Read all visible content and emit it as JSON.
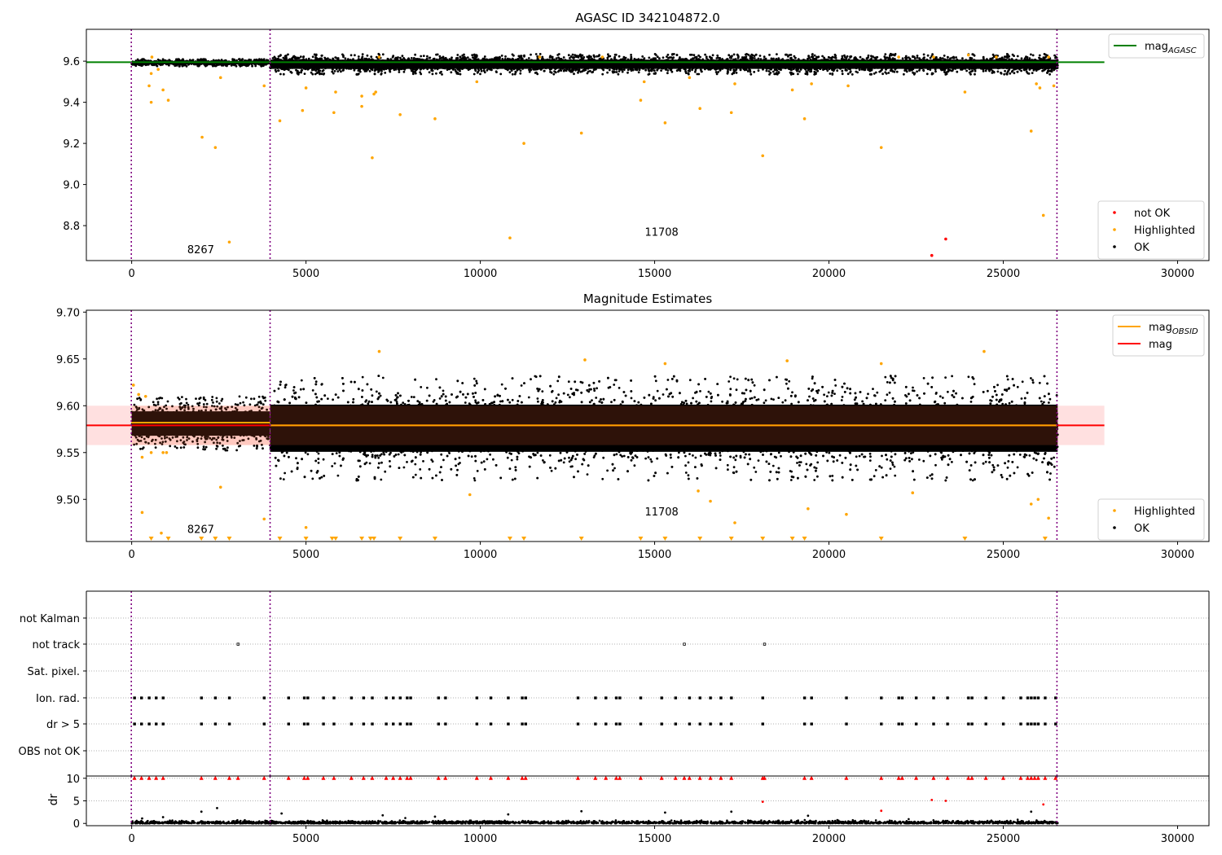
{
  "figure_title": "AGASC ID 342104872.0",
  "colors": {
    "ok": "#000000",
    "highlighted": "#ffa500",
    "not_ok": "#ff0000",
    "mag_agasc_line": "#008000",
    "mag_obsid_line": "#ffa500",
    "mag_line": "#ff0000",
    "mag_band": "#ffcccc",
    "obsid_marker": "#800080",
    "dr_flagged": "#ff0000"
  },
  "chart_data": [
    {
      "type": "scatter",
      "title": "AGASC ID 342104872.0",
      "xlim": [
        -1300,
        30900
      ],
      "ylim": [
        8.63,
        9.755
      ],
      "xticks": [
        0,
        5000,
        10000,
        15000,
        20000,
        25000,
        30000
      ],
      "yticks": [
        8.8,
        9.0,
        9.2,
        9.4,
        9.6
      ],
      "ytick_labels": [
        "8.8",
        "9.0",
        "9.2",
        "9.4",
        "9.6"
      ],
      "legend_top": {
        "position": "top-right",
        "entries": [
          {
            "label": "mag",
            "sub": "AGASC",
            "kind": "line",
            "color": "#008000"
          }
        ]
      },
      "legend_bottom": {
        "position": "bottom-right",
        "entries": [
          {
            "label": "not OK",
            "kind": "point",
            "color": "#ff0000"
          },
          {
            "label": "Highlighted",
            "kind": "point",
            "color": "#ffa500"
          },
          {
            "label": "OK",
            "kind": "point",
            "color": "#000000"
          }
        ]
      },
      "hline": {
        "name": "mag_AGASC",
        "y": 9.595,
        "x": [
          -1300,
          27900
        ]
      },
      "obsid_boundaries": [
        -10,
        3970,
        26540
      ],
      "obsid_labels": [
        {
          "text": "8267",
          "x": 1980,
          "y": 8.665
        },
        {
          "text": "11708",
          "x": 15200,
          "y": 8.75
        }
      ],
      "ok_band": [
        {
          "x": [
            0,
            3960
          ],
          "y_low": 9.575,
          "y_high": 9.61
        },
        {
          "x": [
            3970,
            26560
          ],
          "y_low": 9.535,
          "y_high": 9.635
        }
      ],
      "highlighted_points": [
        [
          500,
          9.48
        ],
        [
          560,
          9.54
        ],
        [
          580,
          9.62
        ],
        [
          760,
          9.56
        ],
        [
          560,
          9.4
        ],
        [
          900,
          9.46
        ],
        [
          1050,
          9.41
        ],
        [
          2020,
          9.23
        ],
        [
          2400,
          9.18
        ],
        [
          2550,
          9.52
        ],
        [
          2800,
          8.72
        ],
        [
          3800,
          9.48
        ],
        [
          4250,
          9.31
        ],
        [
          4900,
          9.36
        ],
        [
          5000,
          9.47
        ],
        [
          5800,
          9.35
        ],
        [
          5850,
          9.45
        ],
        [
          6600,
          9.43
        ],
        [
          6600,
          9.38
        ],
        [
          6900,
          9.13
        ],
        [
          6950,
          9.44
        ],
        [
          7000,
          9.45
        ],
        [
          7100,
          9.62
        ],
        [
          7700,
          9.34
        ],
        [
          8700,
          9.32
        ],
        [
          9900,
          9.5
        ],
        [
          10850,
          8.74
        ],
        [
          11250,
          9.2
        ],
        [
          11700,
          9.62
        ],
        [
          12900,
          9.25
        ],
        [
          13500,
          9.62
        ],
        [
          14600,
          9.41
        ],
        [
          14700,
          9.5
        ],
        [
          15300,
          9.3
        ],
        [
          16000,
          9.52
        ],
        [
          16300,
          9.37
        ],
        [
          17200,
          9.35
        ],
        [
          17300,
          9.49
        ],
        [
          18100,
          9.14
        ],
        [
          18950,
          9.46
        ],
        [
          19300,
          9.32
        ],
        [
          19500,
          9.49
        ],
        [
          20550,
          9.48
        ],
        [
          21500,
          9.18
        ],
        [
          22000,
          9.62
        ],
        [
          23000,
          9.62
        ],
        [
          23900,
          9.45
        ],
        [
          24000,
          9.63
        ],
        [
          24800,
          9.62
        ],
        [
          25800,
          9.26
        ],
        [
          25950,
          9.49
        ],
        [
          26050,
          9.47
        ],
        [
          26150,
          8.85
        ],
        [
          26450,
          9.48
        ],
        [
          26300,
          9.62
        ]
      ],
      "not_ok_points": [
        [
          22950,
          8.655
        ],
        [
          23350,
          8.735
        ]
      ]
    },
    {
      "type": "scatter",
      "title": "Magnitude Estimates",
      "xlim": [
        -1300,
        30900
      ],
      "ylim": [
        9.455,
        9.702
      ],
      "xticks": [
        0,
        5000,
        10000,
        15000,
        20000,
        25000,
        30000
      ],
      "yticks": [
        9.5,
        9.55,
        9.6,
        9.65,
        9.7
      ],
      "ytick_labels": [
        "9.50",
        "9.55",
        "9.60",
        "9.65",
        "9.70"
      ],
      "legend_top": {
        "position": "top-right",
        "entries": [
          {
            "label": "mag",
            "sub": "OBSID",
            "kind": "line",
            "color": "#ffa500"
          },
          {
            "label": "mag",
            "kind": "line",
            "color": "#ff0000"
          }
        ]
      },
      "legend_bottom": {
        "position": "bottom-right",
        "entries": [
          {
            "label": "Highlighted",
            "kind": "point",
            "color": "#ffa500"
          },
          {
            "label": "OK",
            "kind": "point",
            "color": "#000000"
          }
        ]
      },
      "band": {
        "x": [
          -1300,
          27900
        ],
        "y": [
          9.558,
          9.6
        ]
      },
      "mag_line": {
        "y": 9.579,
        "x": [
          -1300,
          27900
        ]
      },
      "mag_obsid": [
        {
          "x": [
            -10,
            3970
          ],
          "y": 9.582
        },
        {
          "x": [
            3970,
            26540
          ],
          "y": 9.579
        }
      ],
      "obsid_boundaries": [
        -10,
        3970,
        26540
      ],
      "obsid_labels": [
        {
          "text": "8267",
          "x": 1980,
          "y": 9.464
        },
        {
          "text": "11708",
          "x": 15200,
          "y": 9.483
        }
      ],
      "ok_band": [
        {
          "x": [
            0,
            3960
          ],
          "y_low": 9.552,
          "y_high": 9.61
        },
        {
          "x": [
            3970,
            26560
          ],
          "y_low": 9.52,
          "y_high": 9.632
        }
      ],
      "highlighted_points": [
        [
          50,
          9.622
        ],
        [
          200,
          9.612
        ],
        [
          400,
          9.61
        ],
        [
          300,
          9.545
        ],
        [
          560,
          9.55
        ],
        [
          900,
          9.55
        ],
        [
          1000,
          9.55
        ],
        [
          2550,
          9.513
        ],
        [
          300,
          9.486
        ],
        [
          850,
          9.464
        ],
        [
          3800,
          9.479
        ],
        [
          5000,
          9.47
        ],
        [
          7100,
          9.658
        ],
        [
          9700,
          9.505
        ],
        [
          13000,
          9.649
        ],
        [
          16250,
          9.509
        ],
        [
          16600,
          9.498
        ],
        [
          17300,
          9.475
        ],
        [
          19400,
          9.49
        ],
        [
          20500,
          9.484
        ],
        [
          22400,
          9.507
        ],
        [
          24450,
          9.658
        ],
        [
          25800,
          9.495
        ],
        [
          26000,
          9.5
        ],
        [
          26300,
          9.48
        ],
        [
          15300,
          9.645
        ],
        [
          18800,
          9.648
        ],
        [
          21500,
          9.645
        ]
      ],
      "clipped_points_x": [
        560,
        1050,
        2000,
        2400,
        2800,
        4250,
        5000,
        5750,
        5850,
        6600,
        6850,
        6950,
        7700,
        8700,
        10850,
        11250,
        12900,
        14600,
        15300,
        16300,
        17200,
        18100,
        18950,
        19300,
        21500,
        23900,
        26200
      ]
    },
    {
      "type": "scatter",
      "xlim": [
        -1300,
        30900
      ],
      "xticks": [
        0,
        5000,
        10000,
        15000,
        20000,
        25000,
        30000
      ],
      "flag_categories": [
        "not Kalman",
        "not track",
        "Sat. pixel.",
        "Ion. rad.",
        "dr > 5",
        "OBS not OK"
      ],
      "obsid_boundaries": [
        -10,
        3970,
        26540
      ],
      "flags": {
        "not Kalman": [],
        "not track": [
          3050,
          15850,
          18150
        ],
        "Sat. pixel.": [],
        "Ion. rad.": [
          80,
          280,
          500,
          700,
          900,
          2000,
          2400,
          2800,
          3800,
          4500,
          4950,
          5050,
          5500,
          5800,
          6300,
          6650,
          6900,
          7300,
          7500,
          7700,
          7900,
          8000,
          8800,
          9000,
          9900,
          10300,
          10800,
          11200,
          11300,
          12800,
          13300,
          13600,
          13900,
          14000,
          14600,
          15200,
          15600,
          16000,
          16300,
          16600,
          16900,
          17200,
          18100,
          19300,
          19500,
          20500,
          21500,
          22000,
          22100,
          22500,
          23000,
          23400,
          24000,
          24100,
          24500,
          25000,
          25500,
          25700,
          25800,
          25900,
          26000,
          26200,
          26500
        ],
        "dr > 5": [
          80,
          280,
          500,
          700,
          900,
          2000,
          2400,
          2800,
          3800,
          4500,
          4950,
          5050,
          5500,
          5800,
          6300,
          6650,
          6900,
          7300,
          7500,
          7700,
          7900,
          8000,
          8800,
          9000,
          9900,
          10300,
          10800,
          11200,
          11300,
          12800,
          13300,
          13600,
          13900,
          14000,
          14600,
          15200,
          15600,
          16000,
          16300,
          16600,
          16900,
          17200,
          18100,
          19300,
          19500,
          20500,
          21500,
          22000,
          22100,
          22500,
          23000,
          23400,
          24000,
          24100,
          24500,
          25000,
          25500,
          25700,
          25800,
          25900,
          26000,
          26200,
          26500
        ],
        "OBS not OK": []
      }
    },
    {
      "type": "scatter",
      "ylabel": "dr",
      "xlim": [
        -1300,
        30900
      ],
      "ylim": [
        -0.5,
        10.5
      ],
      "xticks": [
        0,
        5000,
        10000,
        15000,
        20000,
        25000,
        30000
      ],
      "yticks": [
        0,
        5,
        10
      ],
      "ytick_labels": [
        "0",
        "5",
        "10"
      ],
      "obsid_boundaries": [
        -10,
        3970,
        26540
      ],
      "dr_band": {
        "x": [
          0,
          26560
        ],
        "y_low": 0,
        "y_high": 1
      },
      "dr_outliers": [
        [
          2000,
          2.6
        ],
        [
          2450,
          3.4
        ],
        [
          4300,
          2.2
        ],
        [
          7200,
          1.8
        ],
        [
          8700,
          1.5
        ],
        [
          10800,
          2.0
        ],
        [
          12900,
          2.7
        ],
        [
          15300,
          2.4
        ],
        [
          17200,
          2.6
        ],
        [
          19400,
          1.7
        ],
        [
          25800,
          2.6
        ],
        [
          900,
          1.4
        ],
        [
          300,
          1.1
        ]
      ],
      "dr_flagged_low": [
        [
          18100,
          4.8
        ],
        [
          21500,
          2.8
        ],
        [
          22950,
          5.2
        ],
        [
          23350,
          5.0
        ],
        [
          26150,
          4.2
        ]
      ],
      "dr_clipped_x": [
        80,
        280,
        500,
        700,
        900,
        2000,
        2400,
        2800,
        3050,
        3800,
        4500,
        4950,
        5050,
        5500,
        5800,
        6300,
        6650,
        6900,
        7300,
        7500,
        7700,
        7900,
        8000,
        8800,
        9000,
        9900,
        10300,
        10800,
        11200,
        11300,
        12800,
        13300,
        13600,
        13900,
        14000,
        14600,
        15200,
        15600,
        15850,
        16000,
        16300,
        16600,
        16900,
        17200,
        18100,
        18150,
        19300,
        19500,
        20500,
        21500,
        22000,
        22100,
        22500,
        23000,
        23400,
        24000,
        24100,
        24500,
        25000,
        25500,
        25700,
        25800,
        25900,
        26000,
        26200,
        26500
      ]
    }
  ]
}
